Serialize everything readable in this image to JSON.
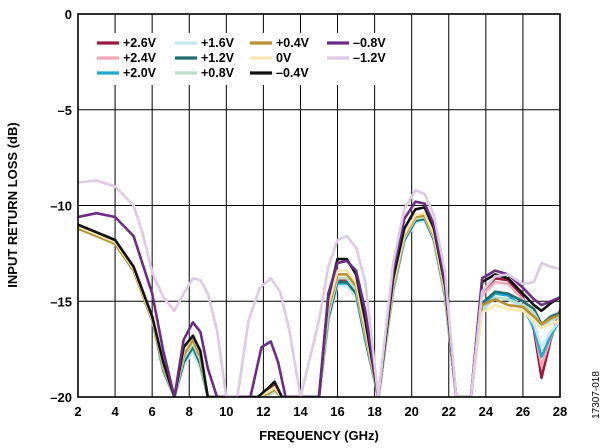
{
  "chart_data": {
    "type": "line",
    "xlabel": "FREQUENCY (GHz)",
    "ylabel": "INPUT RETURN LOSS (dB)",
    "xlim": [
      2,
      28
    ],
    "ylim": [
      -20,
      0
    ],
    "x_ticks": [
      "2",
      "4",
      "6",
      "8",
      "10",
      "12",
      "14",
      "16",
      "18",
      "20",
      "22",
      "24",
      "26",
      "28"
    ],
    "y_ticks": [
      "0",
      "–5",
      "–10",
      "–15",
      "–20"
    ],
    "y_tick_values": [
      0,
      -5,
      -10,
      -15,
      -20
    ],
    "grid": true,
    "legend_position": "top-left",
    "figure_id": "17307-018",
    "series": [
      {
        "name": "+2.6V",
        "color": "#9b1b3f",
        "x": [
          2,
          3,
          4,
          5,
          6,
          6.6,
          7.2,
          7.7,
          8.2,
          8.6,
          9,
          9.5,
          11.7,
          12.3,
          12.6,
          13,
          15,
          15.5,
          16,
          16.5,
          17,
          17.5,
          18.2,
          19,
          19.6,
          20.2,
          20.7,
          21.2,
          21.8,
          22.4,
          23.2,
          23.8,
          24.5,
          25.2,
          26,
          26.6,
          27,
          27.5,
          28
        ],
        "y": [
          -11,
          -11.4,
          -11.8,
          -13.2,
          -15.8,
          -18.5,
          -20,
          -18.2,
          -17.4,
          -18.2,
          -20,
          -20,
          -20,
          -19.6,
          -19.4,
          -20,
          -20,
          -15.8,
          -13.9,
          -13.9,
          -14.5,
          -16.8,
          -20,
          -14.2,
          -11.6,
          -10.6,
          -10.5,
          -11.5,
          -14.5,
          -20,
          -20,
          -14.5,
          -13.8,
          -13.9,
          -14.8,
          -16.5,
          -19,
          -17,
          -15.5
        ]
      },
      {
        "name": "+2.4V",
        "color": "#f2a9b5",
        "x": [
          2,
          3,
          4,
          5,
          6,
          6.6,
          7.2,
          7.7,
          8.2,
          8.6,
          9,
          9.5,
          11.7,
          12.3,
          12.6,
          13,
          15,
          15.5,
          16,
          16.5,
          17,
          17.5,
          18.2,
          19,
          19.6,
          20.2,
          20.7,
          21.2,
          21.8,
          22.4,
          23.2,
          23.8,
          24.5,
          25.2,
          26,
          26.6,
          27,
          27.5,
          28
        ],
        "y": [
          -11,
          -11.4,
          -11.8,
          -13.2,
          -15.8,
          -18.5,
          -20,
          -18.2,
          -17.5,
          -18.3,
          -20,
          -20,
          -20,
          -19.7,
          -19.5,
          -20,
          -20,
          -15.9,
          -14,
          -14,
          -14.6,
          -16.9,
          -20,
          -14.3,
          -11.7,
          -10.7,
          -10.6,
          -11.6,
          -14.6,
          -20,
          -20,
          -14.7,
          -14,
          -14.1,
          -14.9,
          -16.3,
          -18.4,
          -16.9,
          -15.7
        ]
      },
      {
        "name": "+2.0V",
        "color": "#20a7cf",
        "x": [
          2,
          3,
          4,
          5,
          6,
          6.6,
          7.2,
          7.7,
          8.2,
          8.6,
          9,
          9.5,
          11.7,
          12.3,
          12.6,
          13,
          15,
          15.5,
          16,
          16.5,
          17,
          17.5,
          18.2,
          19,
          19.6,
          20.2,
          20.7,
          21.2,
          21.8,
          22.4,
          23.2,
          23.8,
          24.5,
          25.2,
          26,
          26.6,
          27,
          27.5,
          28
        ],
        "y": [
          -11.1,
          -11.5,
          -11.9,
          -13.3,
          -15.9,
          -18.6,
          -20,
          -18.3,
          -17.6,
          -18.4,
          -20,
          -20,
          -20,
          -19.8,
          -19.6,
          -20,
          -20,
          -16,
          -14.1,
          -14.1,
          -14.7,
          -17,
          -20,
          -14.4,
          -11.8,
          -10.8,
          -10.7,
          -11.7,
          -14.7,
          -20,
          -20,
          -15.2,
          -14.6,
          -14.7,
          -15.3,
          -16.4,
          -17.9,
          -16.8,
          -16
        ]
      },
      {
        "name": "+1.6V",
        "color": "#c5e8f3",
        "x": [
          2,
          3,
          4,
          5,
          6,
          6.6,
          7.2,
          7.7,
          8.2,
          8.6,
          9,
          9.5,
          11.7,
          12.3,
          12.6,
          13,
          15,
          15.5,
          16,
          16.5,
          17,
          17.5,
          18.2,
          19,
          19.6,
          20.2,
          20.7,
          21.2,
          21.8,
          22.4,
          23.2,
          23.8,
          24.5,
          25.2,
          26,
          26.6,
          27,
          27.5,
          28
        ],
        "y": [
          -11.2,
          -11.6,
          -12,
          -13.4,
          -16,
          -18.7,
          -20,
          -18.4,
          -17.6,
          -18.5,
          -20,
          -20,
          -20,
          -19.9,
          -19.7,
          -20,
          -20,
          -16,
          -14.2,
          -14.2,
          -14.8,
          -17.1,
          -20,
          -14.5,
          -11.9,
          -10.9,
          -10.8,
          -11.8,
          -14.8,
          -20,
          -20,
          -15.4,
          -14.8,
          -14.9,
          -15.4,
          -16.2,
          -17.4,
          -16.6,
          -16
        ]
      },
      {
        "name": "+1.2V",
        "color": "#1d6f73",
        "x": [
          2,
          3,
          4,
          5,
          6,
          6.6,
          7.2,
          7.7,
          8.2,
          8.6,
          9,
          9.5,
          11.7,
          12.3,
          12.6,
          13,
          15,
          15.5,
          16,
          16.5,
          17,
          17.5,
          18.2,
          19,
          19.6,
          20.2,
          20.7,
          21.2,
          21.8,
          22.4,
          23.2,
          23.8,
          24.5,
          25.2,
          26,
          26.6,
          27,
          27.5,
          28
        ],
        "y": [
          -11.2,
          -11.6,
          -12,
          -13.4,
          -16,
          -18.6,
          -20,
          -18.2,
          -17.4,
          -18.3,
          -20,
          -20,
          -20,
          -19.9,
          -19.7,
          -20,
          -20,
          -15.9,
          -14,
          -14,
          -14.6,
          -17,
          -20,
          -14.4,
          -11.8,
          -10.8,
          -10.7,
          -11.8,
          -14.8,
          -20,
          -20,
          -15.1,
          -14.5,
          -14.6,
          -15,
          -15.4,
          -16.2,
          -15.8,
          -15.6
        ]
      },
      {
        "name": "+0.8V",
        "color": "#b9dec9",
        "x": [
          2,
          3,
          4,
          5,
          6,
          6.6,
          7.2,
          7.7,
          8.2,
          8.6,
          9,
          9.5,
          11.7,
          12.3,
          12.6,
          13,
          15,
          15.5,
          16,
          16.5,
          17,
          17.5,
          18.2,
          19,
          19.6,
          20.2,
          20.7,
          21.2,
          21.8,
          22.4,
          23.2,
          23.8,
          24.5,
          25.2,
          26,
          26.6,
          27,
          27.5,
          28
        ],
        "y": [
          -11.2,
          -11.6,
          -12,
          -13.4,
          -16,
          -18.5,
          -20,
          -18,
          -17.2,
          -18.1,
          -20,
          -20,
          -20,
          -19.9,
          -19.7,
          -20,
          -20,
          -15.7,
          -13.8,
          -13.8,
          -14.4,
          -16.8,
          -20,
          -14.3,
          -11.7,
          -10.7,
          -10.6,
          -11.7,
          -14.7,
          -20,
          -20,
          -15.5,
          -14.8,
          -14.9,
          -15.2,
          -15.6,
          -16.3,
          -16,
          -15.8
        ]
      },
      {
        "name": "+0.4V",
        "color": "#b8912f",
        "x": [
          2,
          3,
          4,
          5,
          6,
          6.6,
          7.2,
          7.7,
          8.2,
          8.6,
          9,
          9.5,
          11.7,
          12.3,
          12.6,
          13,
          15,
          15.5,
          16,
          16.5,
          17,
          17.5,
          18.2,
          19,
          19.6,
          20.2,
          20.7,
          21.2,
          21.8,
          22.4,
          23.2,
          23.8,
          24.5,
          25.2,
          26,
          26.6,
          27,
          27.5,
          28
        ],
        "y": [
          -11.2,
          -11.6,
          -12,
          -13.4,
          -16,
          -18.4,
          -20,
          -17.8,
          -17,
          -17.9,
          -20,
          -20,
          -20,
          -19.8,
          -19.6,
          -20,
          -20,
          -15.4,
          -13.6,
          -13.6,
          -14.2,
          -16.6,
          -20,
          -14.2,
          -11.6,
          -10.6,
          -10.5,
          -11.6,
          -14.6,
          -20,
          -20,
          -15.2,
          -14.9,
          -15.2,
          -15.3,
          -15.8,
          -16.2,
          -15.9,
          -15.7
        ]
      },
      {
        "name": "0V",
        "color": "#f8e7b2",
        "x": [
          2,
          3,
          4,
          5,
          6,
          6.6,
          7.2,
          7.7,
          8.2,
          8.6,
          9,
          9.5,
          11.7,
          12.3,
          12.6,
          13,
          15,
          15.5,
          16,
          16.5,
          17,
          17.5,
          18.2,
          19,
          19.6,
          20.2,
          20.7,
          21.2,
          21.8,
          22.4,
          23.2,
          23.8,
          24.5,
          25.2,
          26,
          26.6,
          27,
          27.5,
          28
        ],
        "y": [
          -11.1,
          -11.5,
          -11.9,
          -13.3,
          -15.9,
          -18.3,
          -20,
          -17.6,
          -16.8,
          -17.7,
          -20,
          -20,
          -20,
          -19.7,
          -19.5,
          -20,
          -20,
          -15.2,
          -13.4,
          -13.4,
          -14,
          -16.4,
          -20,
          -14.1,
          -11.5,
          -10.5,
          -10.4,
          -11.5,
          -14.5,
          -20,
          -20,
          -15.6,
          -15.2,
          -15.4,
          -15.5,
          -16,
          -16.4,
          -16.2,
          -16
        ]
      },
      {
        "name": "–0.4V",
        "color": "#111111",
        "x": [
          2,
          3,
          4,
          5,
          6,
          6.6,
          7.2,
          7.7,
          8.2,
          8.6,
          9,
          9.5,
          11.7,
          12.3,
          12.6,
          13,
          15,
          15.5,
          16,
          16.5,
          17,
          17.5,
          18.2,
          19,
          19.6,
          20.2,
          20.7,
          21.2,
          21.8,
          22.4,
          23.2,
          23.8,
          24.5,
          25.2,
          26,
          26.6,
          27,
          27.5,
          28
        ],
        "y": [
          -11,
          -11.4,
          -11.8,
          -13.2,
          -15.8,
          -18.2,
          -20,
          -17.4,
          -16.8,
          -17.6,
          -20,
          -20,
          -20,
          -19.5,
          -19.2,
          -20,
          -20,
          -14.8,
          -12.8,
          -12.8,
          -13.6,
          -16,
          -20,
          -13.8,
          -11.2,
          -10.2,
          -10.1,
          -11.2,
          -14.2,
          -20,
          -20,
          -14,
          -13.6,
          -13.8,
          -14.6,
          -15.2,
          -15.5,
          -15.1,
          -14.8
        ]
      },
      {
        "name": "–0.8V",
        "color": "#6b2d84",
        "x": [
          2,
          3,
          4,
          5,
          6,
          6.6,
          7.2,
          7.7,
          8.2,
          8.6,
          9,
          9.5,
          11.3,
          11.9,
          12.4,
          12.8,
          13.2,
          15,
          15.5,
          16,
          16.5,
          17,
          17.5,
          18.2,
          19,
          19.6,
          20.2,
          20.7,
          21.2,
          21.8,
          22.4,
          23.2,
          23.8,
          24.5,
          25.2,
          26,
          26.6,
          27,
          27.5,
          28
        ],
        "y": [
          -10.6,
          -10.4,
          -10.6,
          -11.6,
          -14.6,
          -17.6,
          -20,
          -17,
          -16.1,
          -16.6,
          -18.5,
          -20,
          -20,
          -17.4,
          -17.1,
          -18.2,
          -20,
          -20,
          -14.6,
          -13,
          -12.9,
          -13.4,
          -15.5,
          -20,
          -13.4,
          -10.7,
          -9.8,
          -9.9,
          -11,
          -14,
          -20,
          -20,
          -13.8,
          -13.4,
          -13.6,
          -14.3,
          -14.9,
          -15.2,
          -15,
          -14.8
        ]
      },
      {
        "name": "–1.2V",
        "color": "#dccbe3",
        "x": [
          2,
          3,
          4,
          5,
          5.5,
          6,
          6.6,
          7.2,
          7.7,
          8.2,
          8.6,
          9,
          9.5,
          10,
          10.6,
          11.2,
          11.8,
          12.4,
          12.9,
          13.4,
          14,
          15,
          15.5,
          16,
          16.5,
          17,
          17.5,
          18.2,
          19,
          19.6,
          20.2,
          20.7,
          21.2,
          21.8,
          22.4,
          23.2,
          23.8,
          24.5,
          25.2,
          26,
          26.6,
          27,
          27.5,
          28
        ],
        "y": [
          -8.8,
          -8.7,
          -9,
          -10,
          -11.5,
          -13.5,
          -14.8,
          -15.5,
          -14.6,
          -13.8,
          -13.9,
          -14.6,
          -16.5,
          -20,
          -20,
          -16,
          -14.3,
          -13.8,
          -14.5,
          -16.5,
          -20,
          -16,
          -13.2,
          -11.8,
          -11.6,
          -12.2,
          -14,
          -20,
          -13,
          -10.2,
          -9.2,
          -9.4,
          -10.5,
          -13.5,
          -20,
          -20,
          -14.5,
          -13.7,
          -13.6,
          -14.1,
          -14,
          -13,
          -13.2,
          -13.3
        ]
      }
    ]
  }
}
